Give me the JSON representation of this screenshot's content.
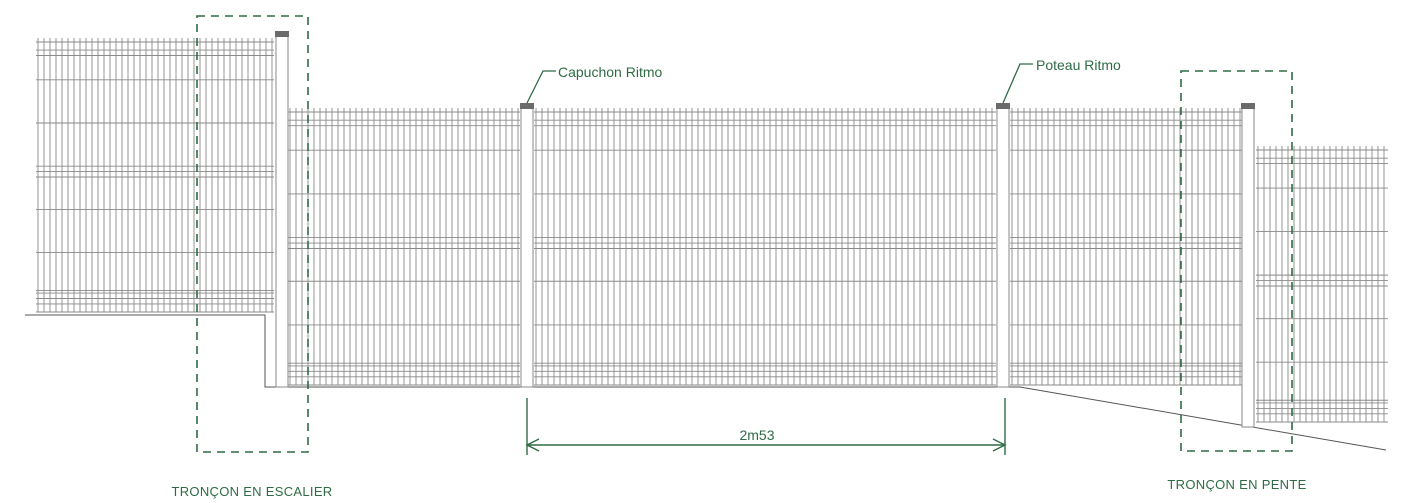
{
  "labels": {
    "cap_label": "Capuchon Ritmo",
    "post_label": "Poteau Ritmo",
    "dimension": "2m53",
    "section_stair": "TRONÇON EN ESCALIER",
    "section_slope": "TRONÇON EN PENTE"
  },
  "colors": {
    "accent": "#2f6b45",
    "line": "#8a8a8a",
    "cap": "#6b6b6b"
  }
}
